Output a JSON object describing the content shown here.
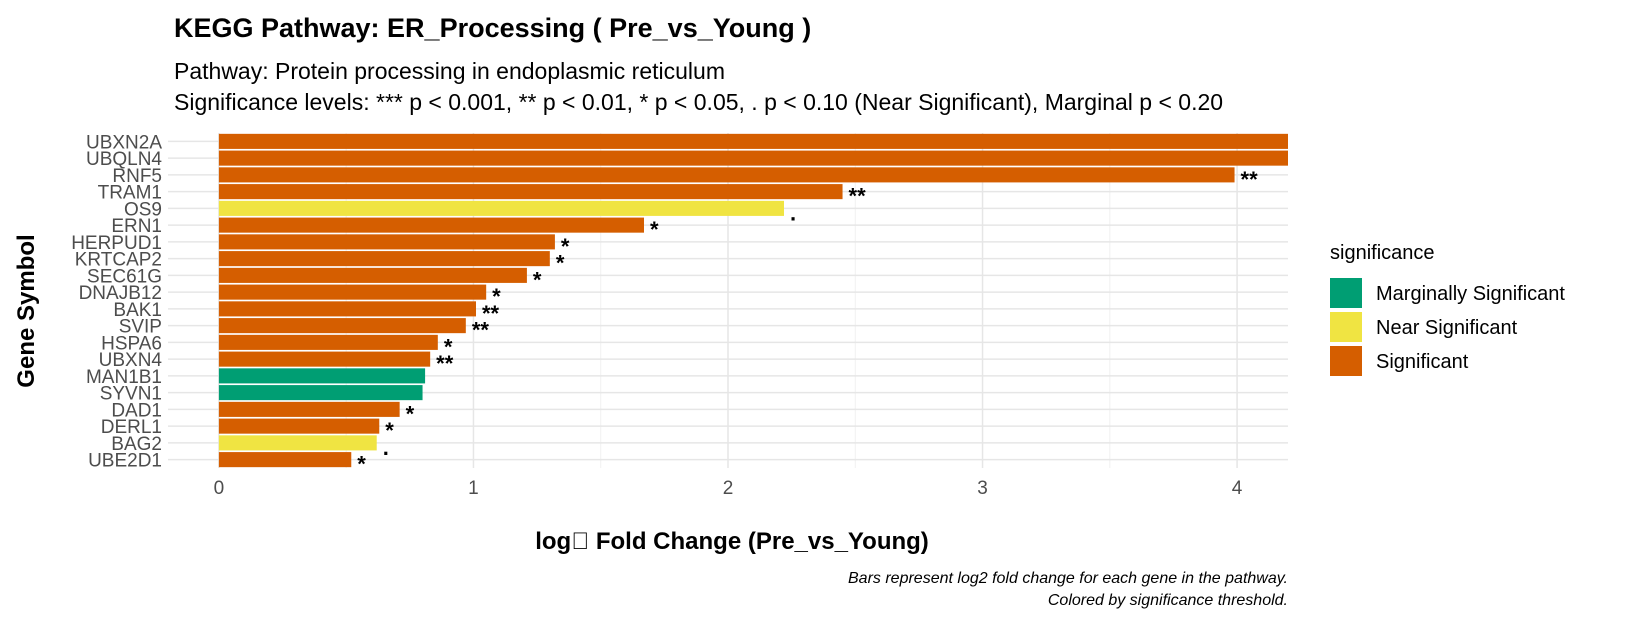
{
  "chart_data": {
    "type": "bar",
    "orientation": "horizontal",
    "title": "KEGG Pathway: ER_Processing ( Pre_vs_Young )",
    "subtitle_lines": [
      "Pathway: Protein processing in endoplasmic reticulum",
      "Significance levels: *** p < 0.001, ** p < 0.01, * p < 0.05, . p < 0.10 (Near Significant), Marginal p < 0.20"
    ],
    "xlabel": "log\u0000 Fold Change (Pre_vs_Young)",
    "ylabel": "Gene Symbol",
    "xlim": [
      -0.2,
      4.2
    ],
    "xticks": [
      0,
      1,
      2,
      3,
      4
    ],
    "caption_lines": [
      "Bars represent log2 fold change for each gene in the pathway.",
      "Colored by significance threshold."
    ],
    "legend": {
      "title": "significance",
      "position": "right",
      "items": [
        {
          "label": "Marginally Significant",
          "color": "#009E73"
        },
        {
          "label": "Near Significant",
          "color": "#F0E442"
        },
        {
          "label": "Significant",
          "color": "#D55E00"
        }
      ]
    },
    "grid": true,
    "genes": [
      {
        "gene": "UBXN2A",
        "value": 4.25,
        "significance": "Significant",
        "label": ""
      },
      {
        "gene": "UBQLN4",
        "value": 4.2,
        "significance": "Significant",
        "label": ""
      },
      {
        "gene": "RNF5",
        "value": 3.99,
        "significance": "Significant",
        "label": "**"
      },
      {
        "gene": "TRAM1",
        "value": 2.45,
        "significance": "Significant",
        "label": "**"
      },
      {
        "gene": "OS9",
        "value": 2.22,
        "significance": "Near Significant",
        "label": "."
      },
      {
        "gene": "ERN1",
        "value": 1.67,
        "significance": "Significant",
        "label": "*"
      },
      {
        "gene": "HERPUD1",
        "value": 1.32,
        "significance": "Significant",
        "label": "*"
      },
      {
        "gene": "KRTCAP2",
        "value": 1.3,
        "significance": "Significant",
        "label": "*"
      },
      {
        "gene": "SEC61G",
        "value": 1.21,
        "significance": "Significant",
        "label": "*"
      },
      {
        "gene": "DNAJB12",
        "value": 1.05,
        "significance": "Significant",
        "label": "*"
      },
      {
        "gene": "BAK1",
        "value": 1.01,
        "significance": "Significant",
        "label": "**"
      },
      {
        "gene": "SVIP",
        "value": 0.97,
        "significance": "Significant",
        "label": "**"
      },
      {
        "gene": "HSPA6",
        "value": 0.86,
        "significance": "Significant",
        "label": "*"
      },
      {
        "gene": "UBXN4",
        "value": 0.83,
        "significance": "Significant",
        "label": "**"
      },
      {
        "gene": "MAN1B1",
        "value": 0.81,
        "significance": "Marginally Significant",
        "label": ""
      },
      {
        "gene": "SYVN1",
        "value": 0.8,
        "significance": "Marginally Significant",
        "label": ""
      },
      {
        "gene": "DAD1",
        "value": 0.71,
        "significance": "Significant",
        "label": "*"
      },
      {
        "gene": "DERL1",
        "value": 0.63,
        "significance": "Significant",
        "label": "*"
      },
      {
        "gene": "BAG2",
        "value": 0.62,
        "significance": "Near Significant",
        "label": "."
      },
      {
        "gene": "UBE2D1",
        "value": 0.52,
        "significance": "Significant",
        "label": "*"
      }
    ]
  }
}
